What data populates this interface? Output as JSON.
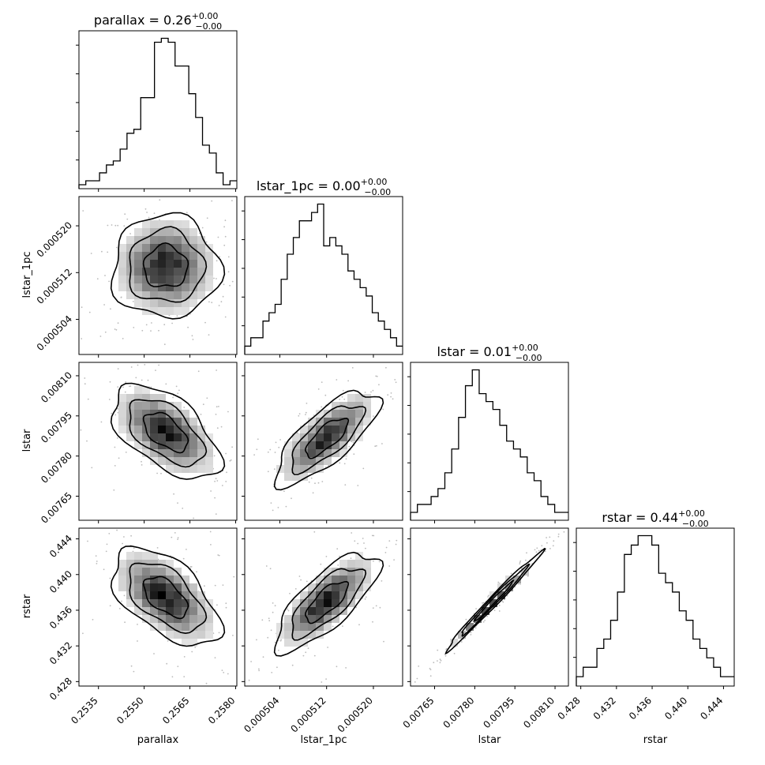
{
  "chart_data": {
    "type": "corner",
    "parameters": [
      "parallax",
      "lstar_1pc",
      "lstar",
      "rstar"
    ],
    "titles": [
      {
        "param": "parallax",
        "text": "parallax = 0.26",
        "plus": "+0.00",
        "minus": "−0.00"
      },
      {
        "param": "lstar_1pc",
        "text": "lstar_1pc = 0.00",
        "plus": "+0.00",
        "minus": "−0.00"
      },
      {
        "param": "lstar",
        "text": "lstar = 0.01",
        "plus": "+0.00",
        "minus": "−0.00"
      },
      {
        "param": "rstar",
        "text": "rstar = 0.44",
        "plus": "+0.00",
        "minus": "−0.00"
      }
    ],
    "axes": {
      "parallax": {
        "range": [
          0.25286,
          0.25804
        ],
        "ticks": [
          0.2535,
          0.255,
          0.2565,
          0.258
        ],
        "tick_labels": [
          "0.2535",
          "0.2550",
          "0.2565",
          "0.2580"
        ]
      },
      "lstar_1pc": {
        "range": [
          0.000498,
          0.000525
        ],
        "ticks": [
          0.000504,
          0.000512,
          0.00052
        ],
        "tick_labels": [
          "0.000504",
          "0.000512",
          "0.000520"
        ]
      },
      "lstar": {
        "range": [
          0.00756,
          0.00815
        ],
        "ticks": [
          0.00765,
          0.0078,
          0.00795,
          0.0081
        ],
        "tick_labels": [
          "0.00765",
          "0.00780",
          "0.00795",
          "0.00810"
        ]
      },
      "rstar": {
        "range": [
          0.4275,
          0.4452
        ],
        "ticks": [
          0.428,
          0.432,
          0.436,
          0.44,
          0.444
        ],
        "tick_labels": [
          "0.428",
          "0.432",
          "0.436",
          "0.440",
          "0.444"
        ]
      }
    },
    "histograms": [
      {
        "param": "parallax",
        "counts": [
          1,
          2,
          2,
          4,
          6,
          7,
          10,
          14,
          15,
          23,
          23,
          37,
          38,
          37,
          31,
          31,
          24,
          18,
          11,
          9,
          4,
          1,
          2
        ]
      },
      {
        "param": "lstar_1pc",
        "counts": [
          1,
          2,
          2,
          4,
          5,
          6,
          9,
          12,
          14,
          16,
          16,
          17,
          18,
          13,
          14,
          13,
          12,
          10,
          9,
          8,
          7,
          5,
          4,
          3,
          2,
          1
        ]
      },
      {
        "param": "lstar",
        "counts": [
          1,
          2,
          2,
          3,
          4,
          6,
          9,
          13,
          17,
          19,
          16,
          15,
          14,
          12,
          10,
          9,
          8,
          6,
          5,
          3,
          2,
          1,
          1
        ]
      },
      {
        "param": "rstar",
        "counts": [
          1,
          2,
          2,
          4,
          5,
          7,
          10,
          14,
          15,
          16,
          16,
          15,
          12,
          11,
          10,
          8,
          7,
          5,
          4,
          3,
          2,
          1,
          1
        ]
      }
    ],
    "scatter_panels": [
      {
        "x": "parallax",
        "y": "lstar_1pc",
        "center": [
          0.2557,
          0.000513
        ],
        "spread": [
          0.0008,
          4e-06
        ],
        "correlation": 0.0
      },
      {
        "x": "parallax",
        "y": "lstar",
        "center": [
          0.2557,
          0.00789
        ],
        "spread": [
          0.0008,
          8e-05
        ],
        "correlation": -0.55
      },
      {
        "x": "lstar_1pc",
        "y": "lstar",
        "center": [
          0.000512,
          0.00787
        ],
        "spread": [
          4e-06,
          8e-05
        ],
        "correlation": 0.75
      },
      {
        "x": "parallax",
        "y": "rstar",
        "center": [
          0.2557,
          0.4375
        ],
        "spread": [
          0.0008,
          0.0025
        ],
        "correlation": -0.55
      },
      {
        "x": "lstar_1pc",
        "y": "rstar",
        "center": [
          0.000512,
          0.437
        ],
        "spread": [
          4e-06,
          0.0025
        ],
        "correlation": 0.75
      },
      {
        "x": "lstar",
        "y": "rstar",
        "center": [
          0.00787,
          0.437
        ],
        "spread": [
          8e-05,
          0.0025
        ],
        "correlation": 0.99
      }
    ],
    "grid": false,
    "legend": "none"
  }
}
